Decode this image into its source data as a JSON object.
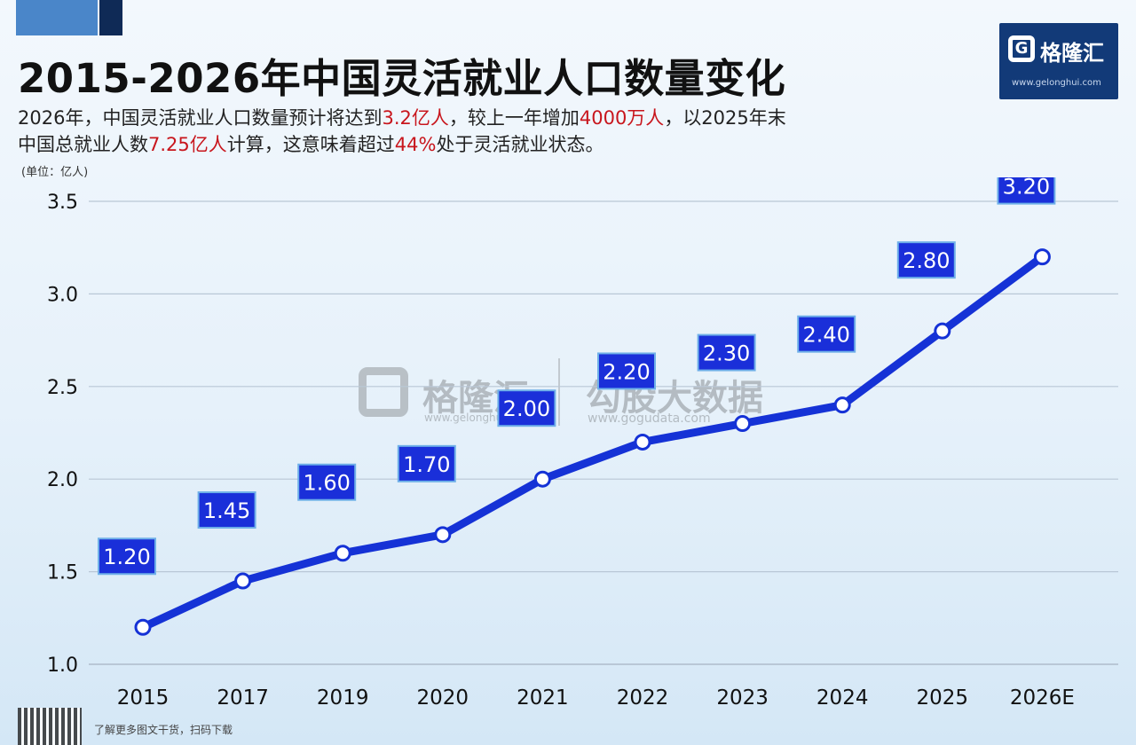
{
  "header": {
    "title": "2015-2026年中国灵活就业人口数量变化",
    "subtitle_line1": [
      "2026年，中国灵活就业人口数量预计将达到",
      "3.2亿人",
      "，较上一年增加",
      "4000万人",
      "，以2025年末"
    ],
    "subtitle_line2": [
      "中国总就业人数",
      "7.25亿人",
      "计算，这意味着超过",
      "44%",
      "处于灵活就业状态。"
    ],
    "unit": "(单位：亿人)"
  },
  "logo": {
    "text": "格隆汇",
    "mark": "G",
    "url": "www.gelonghui.com"
  },
  "watermark": {
    "text": "格隆汇",
    "url": "www.gelonghui.com",
    "text2": "勾股大数据",
    "url2": "www.gogudata.com"
  },
  "footer": {
    "text": "了解更多图文干货，扫码下载"
  },
  "colors": {
    "line": "#1532d6",
    "label_bg": "#1a2fd9",
    "label_border": "#6fb0e8",
    "grid": "#b9c7d6",
    "highlight": "#c8161d"
  },
  "chart_data": {
    "type": "line",
    "title": "2015-2026年中国灵活就业人口数量变化",
    "ylabel": "(单位：亿人)",
    "xlabel": "",
    "categories": [
      "2015",
      "2017",
      "2019",
      "2020",
      "2021",
      "2022",
      "2023",
      "2024",
      "2025",
      "2026E"
    ],
    "values": [
      1.2,
      1.45,
      1.6,
      1.7,
      2.0,
      2.2,
      2.3,
      2.4,
      2.8,
      3.2
    ],
    "labels": [
      "1.20",
      "1.45",
      "1.60",
      "1.70",
      "2.00",
      "2.20",
      "2.30",
      "2.40",
      "2.80",
      "3.20"
    ],
    "ylim": [
      1.0,
      3.5
    ],
    "yticks": [
      1.0,
      1.5,
      2.0,
      2.5,
      3.0,
      3.5
    ],
    "ytick_labels": [
      "1.0",
      "1.5",
      "2.0",
      "2.5",
      "3.0",
      "3.5"
    ],
    "grid": true,
    "legend": "none"
  }
}
